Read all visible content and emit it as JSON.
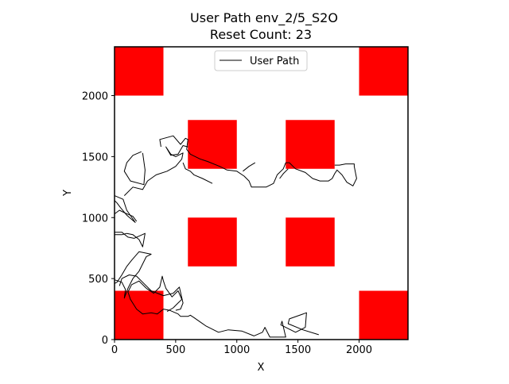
{
  "chart_data": {
    "type": "line",
    "title": "User Path env_2/5_S2O",
    "subtitle": "Reset Count: 23",
    "xlabel": "X",
    "ylabel": "Y",
    "xlim": [
      0,
      2400
    ],
    "ylim": [
      0,
      2400
    ],
    "x_ticks": [
      0,
      500,
      1000,
      1500,
      2000
    ],
    "y_ticks": [
      0,
      500,
      1000,
      1500,
      2000
    ],
    "grid": false,
    "legend": {
      "position": "top-center",
      "entries": [
        "User Path"
      ]
    },
    "colors": {
      "obstacle": "#ff0000",
      "path": "#000000"
    },
    "obstacles": [
      {
        "x": 0,
        "y": 2000,
        "w": 400,
        "h": 400
      },
      {
        "x": 2000,
        "y": 2000,
        "w": 400,
        "h": 400
      },
      {
        "x": 600,
        "y": 1400,
        "w": 400,
        "h": 400
      },
      {
        "x": 1400,
        "y": 1400,
        "w": 400,
        "h": 400
      },
      {
        "x": 600,
        "y": 600,
        "w": 400,
        "h": 400
      },
      {
        "x": 1400,
        "y": 600,
        "w": 400,
        "h": 400
      },
      {
        "x": 0,
        "y": 0,
        "w": 400,
        "h": 400
      },
      {
        "x": 2000,
        "y": 0,
        "w": 400,
        "h": 400
      }
    ],
    "series": [
      {
        "name": "User Path",
        "segments": [
          [
            [
              1670,
              40
            ],
            [
              1540,
              80
            ],
            [
              1420,
              130
            ],
            [
              1430,
              170
            ],
            [
              1570,
              220
            ],
            [
              1560,
              100
            ],
            [
              1480,
              60
            ],
            [
              1380,
              110
            ],
            [
              1360,
              120
            ],
            [
              1370,
              150
            ],
            [
              1400,
              20
            ],
            [
              1270,
              20
            ],
            [
              1230,
              100
            ],
            [
              1210,
              60
            ],
            [
              1140,
              30
            ],
            [
              1040,
              70
            ],
            [
              930,
              80
            ],
            [
              850,
              60
            ],
            [
              750,
              110
            ],
            [
              650,
              180
            ],
            [
              620,
              200
            ],
            [
              600,
              190
            ],
            [
              540,
              190
            ],
            [
              520,
              210
            ],
            [
              450,
              240
            ],
            [
              400,
              250
            ],
            [
              350,
              210
            ],
            [
              300,
              220
            ],
            [
              230,
              210
            ],
            [
              180,
              250
            ],
            [
              130,
              330
            ],
            [
              110,
              390
            ],
            [
              140,
              450
            ],
            [
              200,
              480
            ],
            [
              260,
              420
            ]
          ],
          [
            [
              260,
              420
            ],
            [
              320,
              380
            ],
            [
              370,
              430
            ],
            [
              390,
              520
            ],
            [
              400,
              480
            ],
            [
              420,
              420
            ],
            [
              470,
              350
            ],
            [
              520,
              400
            ],
            [
              550,
              330
            ],
            [
              520,
              300
            ],
            [
              480,
              260
            ],
            [
              430,
              230
            ]
          ],
          [
            [
              40,
              440
            ],
            [
              60,
              500
            ],
            [
              120,
              530
            ],
            [
              180,
              520
            ],
            [
              240,
              460
            ],
            [
              300,
              400
            ],
            [
              400,
              360
            ],
            [
              480,
              380
            ],
            [
              530,
              430
            ],
            [
              560,
              300
            ],
            [
              540,
              250
            ],
            [
              500,
              240
            ]
          ],
          [
            [
              0,
              490
            ],
            [
              60,
              470
            ],
            [
              90,
              410
            ],
            [
              80,
              340
            ],
            [
              110,
              420
            ],
            [
              150,
              500
            ],
            [
              200,
              560
            ],
            [
              260,
              680
            ],
            [
              300,
              700
            ],
            [
              200,
              720
            ],
            [
              140,
              650
            ],
            [
              100,
              600
            ],
            [
              60,
              530
            ],
            [
              20,
              470
            ],
            [
              0,
              460
            ]
          ],
          [
            [
              0,
              880
            ],
            [
              60,
              880
            ],
            [
              110,
              840
            ],
            [
              160,
              830
            ],
            [
              250,
              870
            ],
            [
              230,
              760
            ],
            [
              200,
              820
            ],
            [
              150,
              860
            ],
            [
              100,
              870
            ],
            [
              60,
              860
            ],
            [
              0,
              860
            ]
          ],
          [
            [
              0,
              1180
            ],
            [
              70,
              1150
            ],
            [
              100,
              1060
            ],
            [
              170,
              960
            ],
            [
              100,
              1020
            ],
            [
              50,
              1080
            ],
            [
              20,
              1120
            ],
            [
              0,
              1140
            ]
          ],
          [
            [
              0,
              1030
            ],
            [
              40,
              1060
            ],
            [
              80,
              1040
            ],
            [
              150,
              1010
            ],
            [
              180,
              970
            ]
          ],
          [
            [
              80,
              1180
            ],
            [
              150,
              1250
            ],
            [
              230,
              1230
            ],
            [
              270,
              1300
            ],
            [
              340,
              1350
            ],
            [
              430,
              1380
            ],
            [
              500,
              1420
            ],
            [
              550,
              1480
            ],
            [
              560,
              1530
            ],
            [
              500,
              1500
            ],
            [
              460,
              1520
            ],
            [
              420,
              1580
            ],
            [
              460,
              1510
            ],
            [
              520,
              1520
            ],
            [
              560,
              1590
            ],
            [
              600,
              1580
            ]
          ],
          [
            [
              220,
              1540
            ],
            [
              150,
              1510
            ],
            [
              100,
              1450
            ],
            [
              80,
              1380
            ],
            [
              130,
              1300
            ],
            [
              240,
              1270
            ],
            [
              250,
              1390
            ],
            [
              230,
              1530
            ]
          ],
          [
            [
              380,
              1580
            ],
            [
              370,
              1640
            ],
            [
              480,
              1670
            ],
            [
              540,
              1600
            ],
            [
              580,
              1650
            ],
            [
              600,
              1640
            ],
            [
              590,
              1560
            ],
            [
              620,
              1520
            ],
            [
              700,
              1480
            ],
            [
              760,
              1460
            ],
            [
              860,
              1420
            ],
            [
              920,
              1390
            ],
            [
              1000,
              1380
            ],
            [
              1060,
              1340
            ],
            [
              1100,
              1300
            ],
            [
              1120,
              1250
            ],
            [
              1160,
              1250
            ],
            [
              1240,
              1250
            ],
            [
              1300,
              1280
            ],
            [
              1330,
              1350
            ],
            [
              1380,
              1400
            ],
            [
              1400,
              1450
            ],
            [
              1430,
              1450
            ],
            [
              1480,
              1400
            ],
            [
              1560,
              1370
            ],
            [
              1620,
              1320
            ],
            [
              1680,
              1300
            ],
            [
              1750,
              1300
            ],
            [
              1780,
              1320
            ],
            [
              1800,
              1360
            ],
            [
              1820,
              1390
            ],
            [
              1860,
              1350
            ],
            [
              1900,
              1290
            ],
            [
              1950,
              1260
            ],
            [
              1980,
              1320
            ],
            [
              1960,
              1420
            ],
            [
              1960,
              1440
            ],
            [
              1890,
              1440
            ],
            [
              1840,
              1430
            ],
            [
              1800,
              1430
            ]
          ],
          [
            [
              800,
              1280
            ],
            [
              720,
              1320
            ],
            [
              650,
              1350
            ],
            [
              620,
              1380
            ],
            [
              580,
              1400
            ],
            [
              560,
              1450
            ]
          ],
          [
            [
              1050,
              1380
            ],
            [
              1100,
              1420
            ],
            [
              1150,
              1450
            ]
          ],
          [
            [
              1350,
              1320
            ],
            [
              1380,
              1360
            ],
            [
              1420,
              1400
            ]
          ]
        ]
      }
    ]
  }
}
